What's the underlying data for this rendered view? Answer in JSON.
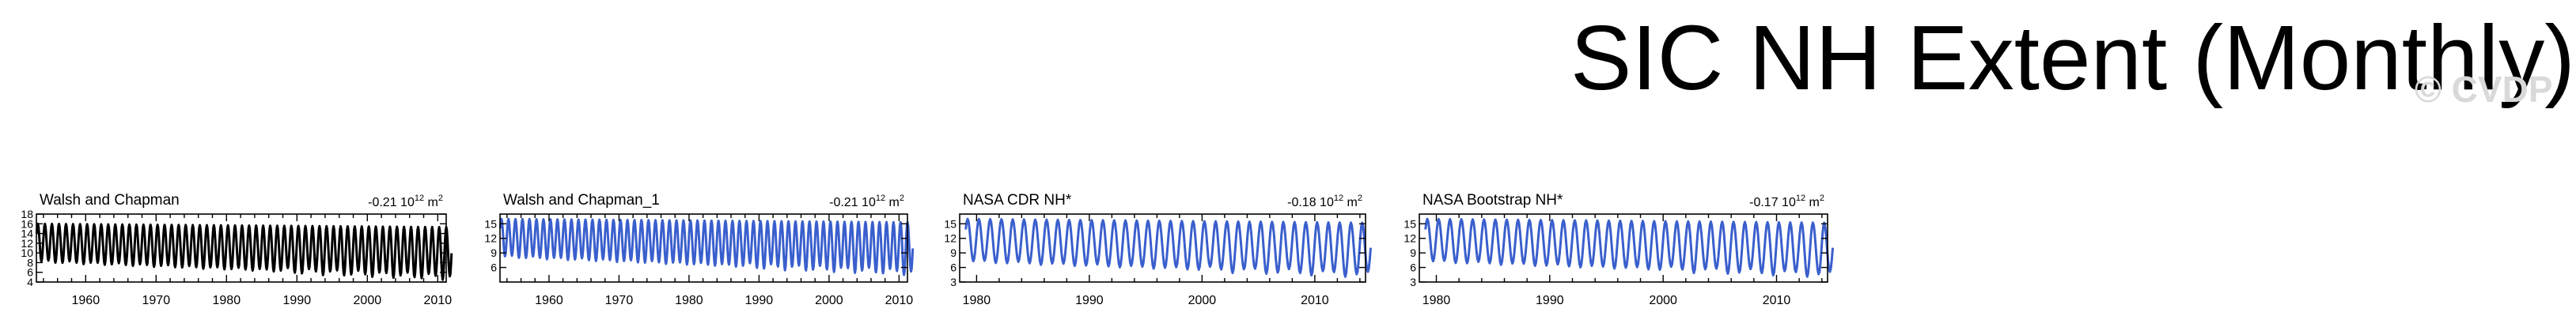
{
  "page": {
    "title": "SIC NH Extent (Monthly)",
    "watermark": "© CVDP"
  },
  "colors": {
    "black": "#000000",
    "blue": "#3a5fcd"
  },
  "chart_data": [
    {
      "type": "line",
      "title": "Walsh and Chapman",
      "trend": "-0.21",
      "trend_unit": "10",
      "trend_exp": "12",
      "trend_m": "m",
      "trend_m_exp": "2",
      "color": "#000000",
      "x_range": [
        1953,
        2011.2
      ],
      "xticks": [
        "1960",
        "1970",
        "1980",
        "1990",
        "2000",
        "2010"
      ],
      "ylim": [
        4,
        18
      ],
      "yticks": [
        "4",
        "6",
        "8",
        "10",
        "12",
        "14",
        "16",
        "18"
      ],
      "series_model": {
        "start_year": 1953,
        "end_year": 2011,
        "annual_max": [
          16.0,
          15.3
        ],
        "annual_min": [
          8.3,
          5.0
        ]
      }
    },
    {
      "type": "line",
      "title": "Walsh and Chapman_1",
      "trend": "-0.21",
      "trend_unit": "10",
      "trend_exp": "12",
      "trend_m": "m",
      "trend_m_exp": "2",
      "color": "#3a5fcd",
      "x_range": [
        1953,
        2011.2
      ],
      "xticks": [
        "1960",
        "1970",
        "1980",
        "1990",
        "2000",
        "2010"
      ],
      "ylim": [
        3,
        17
      ],
      "yticks": [
        "6",
        "9",
        "12",
        "15"
      ],
      "series_model": {
        "start_year": 1953,
        "end_year": 2011,
        "annual_max": [
          16.0,
          15.3
        ],
        "annual_min": [
          8.3,
          5.0
        ]
      }
    },
    {
      "type": "line",
      "title": "NASA CDR NH*",
      "trend": "-0.18",
      "trend_unit": "10",
      "trend_exp": "12",
      "trend_m": "m",
      "trend_m_exp": "2",
      "color": "#3a5fcd",
      "x_range": [
        1978.5,
        2014.5
      ],
      "xticks": [
        "1980",
        "1990",
        "2000",
        "2010"
      ],
      "ylim": [
        3,
        17
      ],
      "yticks": [
        "3",
        "6",
        "9",
        "12",
        "15"
      ],
      "series_model": {
        "start_year": 1979,
        "end_year": 2014,
        "annual_max": [
          16.0,
          15.2
        ],
        "annual_min": [
          7.3,
          4.5
        ]
      }
    },
    {
      "type": "line",
      "title": "NASA Bootstrap NH*",
      "trend": "-0.17",
      "trend_unit": "10",
      "trend_exp": "12",
      "trend_m": "m",
      "trend_m_exp": "2",
      "color": "#3a5fcd",
      "x_range": [
        1978.5,
        2014.5
      ],
      "xticks": [
        "1980",
        "1990",
        "2000",
        "2010"
      ],
      "ylim": [
        3,
        17
      ],
      "yticks": [
        "3",
        "6",
        "9",
        "12",
        "15"
      ],
      "series_model": {
        "start_year": 1979,
        "end_year": 2014,
        "annual_max": [
          16.0,
          15.2
        ],
        "annual_min": [
          7.3,
          4.5
        ]
      }
    }
  ]
}
